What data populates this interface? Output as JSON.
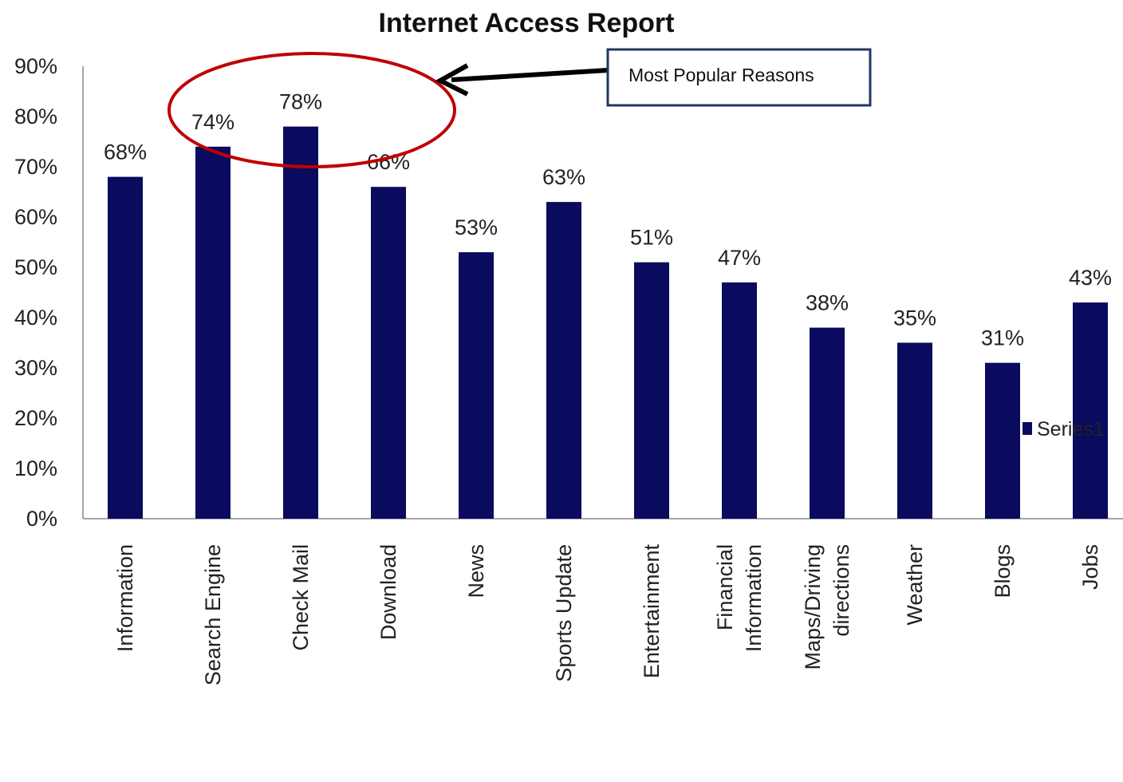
{
  "chart_data": {
    "type": "bar",
    "title": "Internet Access Report",
    "categories": [
      "Information",
      "Search Engine",
      "Check Mail",
      "Download",
      "News",
      "Sports Update",
      "Entertainment",
      "Financial Information",
      "Maps/Driving directions",
      "Weather",
      "Blogs",
      "Jobs"
    ],
    "series": [
      {
        "name": "Series1",
        "values": [
          68,
          74,
          78,
          66,
          53,
          63,
          51,
          47,
          38,
          35,
          31,
          43
        ],
        "labels": [
          "68%",
          "74%",
          "78%",
          "66%",
          "53%",
          "63%",
          "51%",
          "47%",
          "38%",
          "35%",
          "31%",
          "43%"
        ],
        "color": "#0a0a5e"
      }
    ],
    "yticks": [
      "0%",
      "10%",
      "20%",
      "30%",
      "40%",
      "50%",
      "60%",
      "70%",
      "80%",
      "90%"
    ],
    "ylim": [
      0,
      90
    ],
    "grid": false,
    "legend": "right",
    "annotation": {
      "text": "Most Popular Reasons",
      "highlights": [
        "Search Engine",
        "Check Mail"
      ],
      "circle_color": "#c00000",
      "box_border_color": "#1f3864",
      "arrow_color": "#000000"
    }
  }
}
